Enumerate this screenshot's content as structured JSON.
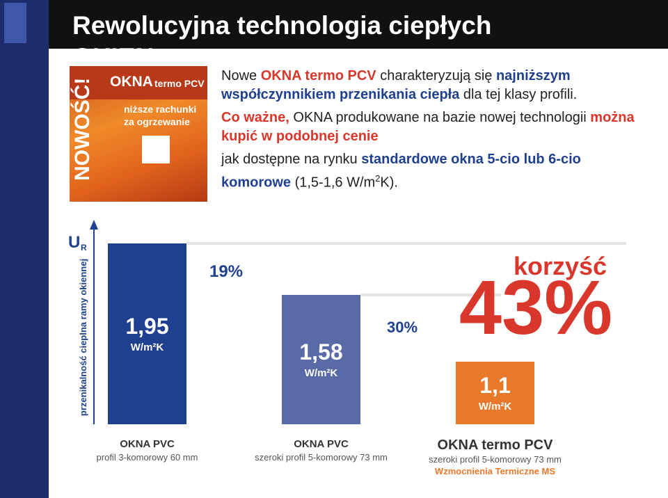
{
  "header": {
    "title": "Rewolucyjna technologia ciepłych OKIEN"
  },
  "badge": {
    "brand": "OKNA",
    "product": "termo PCV",
    "line1": "niższe rachunki",
    "line2": "za ogrzewanie",
    "vertical": "NOWOŚĆ!"
  },
  "paragraphs": [
    [
      {
        "text": "Nowe ",
        "style": "plain"
      },
      {
        "text": "OKNA termo PCV",
        "style": "red"
      },
      {
        "text": " charakteryzują się ",
        "style": "plain"
      },
      {
        "text": "najniższym współczynnikiem przenikania ciepła",
        "style": "blue"
      },
      {
        "text": " dla tej klasy profili.",
        "style": "plain"
      }
    ],
    [
      {
        "text": "Co ważne,",
        "style": "red"
      },
      {
        "text": " OKNA produkowane na bazie nowej technologii ",
        "style": "plain"
      },
      {
        "text": "można kupić w podobnej cenie",
        "style": "red"
      }
    ],
    [
      {
        "text": "jak dostępne na rynku ",
        "style": "plain"
      },
      {
        "text": "standardowe okna 5-cio lub 6-cio komorowe",
        "style": "blue"
      },
      {
        "text": " (1,5-1,6 W/m",
        "style": "plain"
      },
      {
        "text": "2",
        "style": "sup"
      },
      {
        "text": "K).",
        "style": "plain"
      }
    ]
  ],
  "chart_data": {
    "type": "bar",
    "y_label": "przenikalność cieplna ramy okiennej",
    "y_symbol": "U",
    "y_symbol_sub": "R",
    "categories": [
      "OKNA PVC",
      "OKNA PVC",
      "OKNA termo PCV"
    ],
    "category_details": [
      [
        "profil 3-komorowy 60 mm"
      ],
      [
        "szeroki profil 5-komorowy 73 mm"
      ],
      [
        "szeroki profil 5-komorowy 73 mm",
        "Wzmocnienia Termiczne MS"
      ]
    ],
    "values": [
      1.95,
      1.58,
      1.1
    ],
    "value_labels": [
      "1,95",
      "1,58",
      "1,1"
    ],
    "unit": "W/m²K",
    "colors": [
      "#1f3f8f",
      "#5a6aa6",
      "#e8782a"
    ],
    "ylim": [
      0.65,
      2.1
    ],
    "annotations": [
      {
        "text": "19%",
        "color": "#1f3f8f"
      },
      {
        "text": "30%",
        "color": "#1f3f8f"
      },
      {
        "text": "korzyść",
        "color": "#d9372b"
      },
      {
        "text": "43%",
        "color": "#d9372b"
      }
    ]
  }
}
